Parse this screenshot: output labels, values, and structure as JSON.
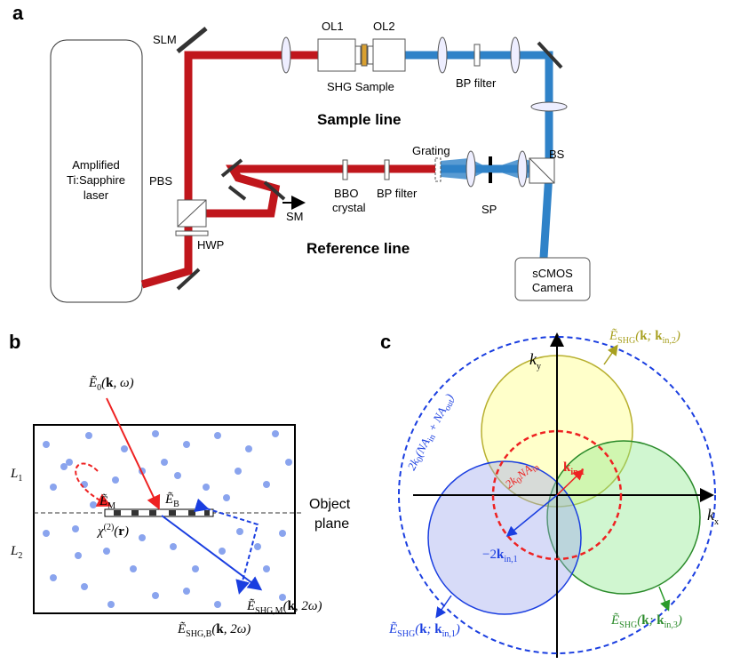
{
  "panel_a": {
    "letter": "a",
    "laser": [
      "Amplified",
      "Ti:Sapphire",
      "laser"
    ],
    "slm": "SLM",
    "ol1": "OL1",
    "ol2": "OL2",
    "shg_sample": "SHG Sample",
    "bp_filter_sample": "BP filter",
    "sample_line": "Sample line",
    "pbs": "PBS",
    "hwp": "HWP",
    "sm": "SM",
    "bbo": [
      "BBO",
      "crystal"
    ],
    "bp_filter_reference": "BP filter",
    "grating": "Grating",
    "bs": "BS",
    "sp": "SP",
    "reference_line": "Reference line",
    "camera": [
      "sCMOS",
      "Camera"
    ]
  },
  "panel_b": {
    "letter": "b",
    "e0": [
      "Ẽ",
      "0",
      "(",
      "k",
      ", ω)"
    ],
    "l1": [
      "L",
      "1"
    ],
    "l2": [
      "L",
      "2"
    ],
    "em": [
      "Ẽ",
      "M"
    ],
    "eb": [
      "Ẽ",
      "B"
    ],
    "chi": [
      "χ",
      "(2)",
      "(",
      "r",
      ")"
    ],
    "object_plane": [
      "Object",
      "plane"
    ],
    "eshg_b": [
      "Ẽ",
      "SHG,B",
      "(",
      "k",
      ", 2ω)"
    ],
    "eshg_m": [
      "Ẽ",
      "SHG,M",
      "(",
      "k",
      ", 2ω)"
    ]
  },
  "panel_c": {
    "letter": "c",
    "ky": [
      "k",
      "y"
    ],
    "kx": [
      "k",
      "x"
    ],
    "e_in2": [
      "Ẽ",
      "SHG",
      "(",
      "k",
      "; ",
      "k",
      "in,2",
      ")"
    ],
    "outer": [
      "2k",
      "0",
      "(NA",
      "in",
      " + NA",
      "out",
      ")"
    ],
    "inner": [
      "2k",
      "0",
      "NA",
      "in"
    ],
    "kin1": [
      "k",
      "in,1"
    ],
    "minus_kin1": [
      "−2",
      "k",
      "in,1"
    ],
    "e_in1": [
      "Ẽ",
      "SHG",
      "(",
      "k",
      "; ",
      "k",
      "in,1",
      ")"
    ],
    "e_in3": [
      "Ẽ",
      "SHG",
      "(",
      "k",
      "; ",
      "k",
      "in,3",
      ")"
    ]
  }
}
